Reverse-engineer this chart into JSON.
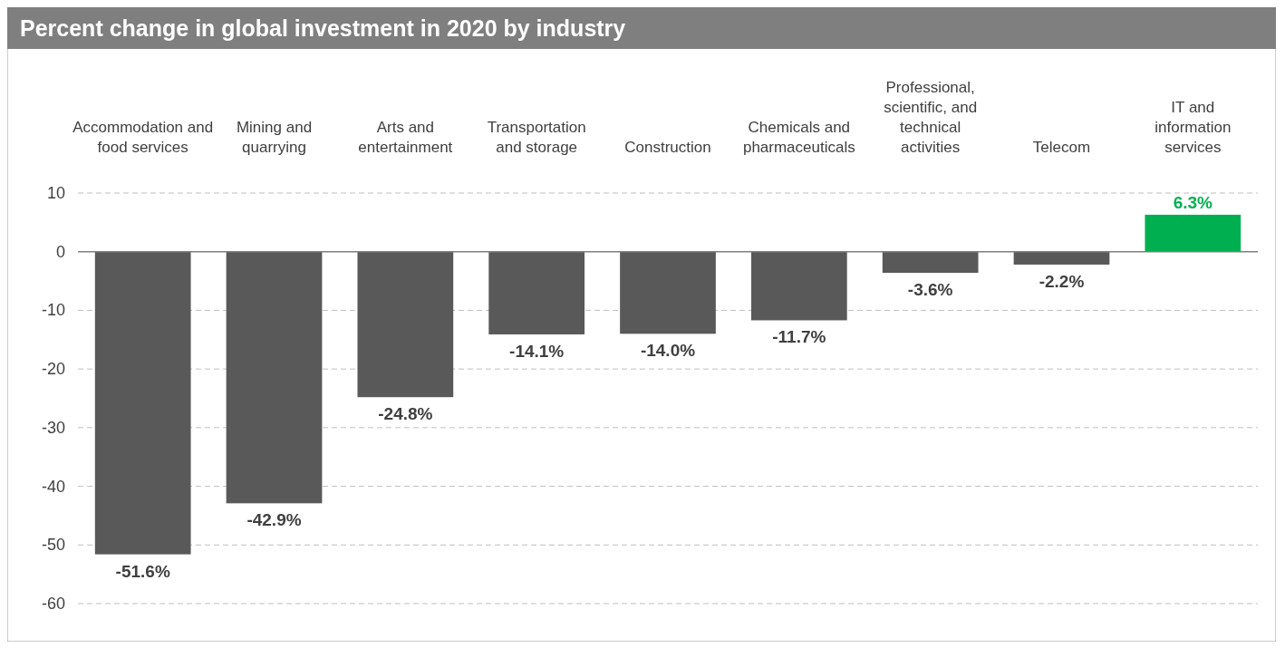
{
  "chart_data": {
    "type": "bar",
    "title": "Percent change in global investment in 2020 by industry",
    "categories": [
      "Accommodation and food services",
      "Mining and quarrying",
      "Arts and entertainment",
      "Transportation and storage",
      "Construction",
      "Chemicals and pharmaceuticals",
      "Professional, scientific, and technical activities",
      "Telecom",
      "IT and information services"
    ],
    "values": [
      -51.6,
      -42.9,
      -24.8,
      -14.1,
      -14.0,
      -11.7,
      -3.6,
      -2.2,
      6.3
    ],
    "colors": [
      "#595959",
      "#595959",
      "#595959",
      "#595959",
      "#595959",
      "#595959",
      "#595959",
      "#595959",
      "#00b050"
    ],
    "value_labels": [
      "-51.6%",
      "-42.9%",
      "-24.8%",
      "-14.1%",
      "-14.0%",
      "-11.7%",
      "-3.6%",
      "-2.2%",
      "6.3%"
    ],
    "ylim": [
      -60,
      10
    ],
    "yticks": [
      10,
      0,
      -10,
      -20,
      -30,
      -40,
      -50,
      -60
    ],
    "grid": "y"
  }
}
